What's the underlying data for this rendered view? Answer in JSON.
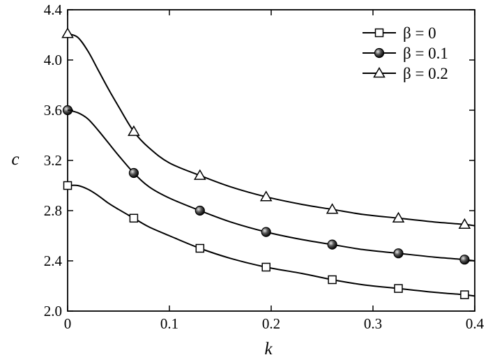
{
  "chart_data": {
    "type": "line",
    "xlabel": "k",
    "ylabel": "c",
    "xlim": [
      0,
      0.4
    ],
    "ylim": [
      2.0,
      4.4
    ],
    "x_ticks": [
      "0",
      "0.1",
      "0.2",
      "0.3",
      "0.4"
    ],
    "y_ticks": [
      "2.0",
      "2.4",
      "2.8",
      "3.2",
      "3.6",
      "4.0",
      "4.4"
    ],
    "x_tick_values": [
      0,
      0.1,
      0.2,
      0.3,
      0.4
    ],
    "y_tick_values": [
      2.0,
      2.4,
      2.8,
      3.2,
      3.6,
      4.0,
      4.4
    ],
    "grid": false,
    "legend_position": "top-right",
    "x": [
      0,
      0.065,
      0.13,
      0.195,
      0.26,
      0.325,
      0.39
    ],
    "series": [
      {
        "name": "β = 0",
        "marker": "square",
        "marker_fill": "white",
        "values": [
          3.0,
          2.74,
          2.5,
          2.35,
          2.25,
          2.18,
          2.13
        ],
        "curve": [
          [
            0,
            3.0
          ],
          [
            0.01,
            3.0
          ],
          [
            0.02,
            2.97
          ],
          [
            0.03,
            2.92
          ],
          [
            0.04,
            2.86
          ],
          [
            0.05,
            2.81
          ],
          [
            0.065,
            2.74
          ],
          [
            0.08,
            2.67
          ],
          [
            0.1,
            2.6
          ],
          [
            0.13,
            2.5
          ],
          [
            0.16,
            2.42
          ],
          [
            0.195,
            2.35
          ],
          [
            0.23,
            2.3
          ],
          [
            0.26,
            2.25
          ],
          [
            0.29,
            2.21
          ],
          [
            0.325,
            2.18
          ],
          [
            0.36,
            2.15
          ],
          [
            0.39,
            2.13
          ],
          [
            0.4,
            2.12
          ]
        ]
      },
      {
        "name": "β = 0.1",
        "marker": "ball",
        "marker_fill": "black",
        "values": [
          3.6,
          3.1,
          2.8,
          2.63,
          2.53,
          2.46,
          2.41
        ],
        "curve": [
          [
            0,
            3.6
          ],
          [
            0.01,
            3.58
          ],
          [
            0.02,
            3.53
          ],
          [
            0.03,
            3.44
          ],
          [
            0.04,
            3.34
          ],
          [
            0.05,
            3.24
          ],
          [
            0.065,
            3.1
          ],
          [
            0.08,
            2.99
          ],
          [
            0.1,
            2.9
          ],
          [
            0.13,
            2.8
          ],
          [
            0.16,
            2.71
          ],
          [
            0.195,
            2.63
          ],
          [
            0.23,
            2.57
          ],
          [
            0.26,
            2.53
          ],
          [
            0.29,
            2.49
          ],
          [
            0.325,
            2.46
          ],
          [
            0.36,
            2.43
          ],
          [
            0.39,
            2.41
          ],
          [
            0.4,
            2.4
          ]
        ]
      },
      {
        "name": "β = 0.2",
        "marker": "triangle",
        "marker_fill": "white",
        "values": [
          4.21,
          3.43,
          3.08,
          2.91,
          2.81,
          2.74,
          2.69
        ],
        "curve": [
          [
            0,
            4.21
          ],
          [
            0.01,
            4.18
          ],
          [
            0.02,
            4.07
          ],
          [
            0.03,
            3.92
          ],
          [
            0.04,
            3.77
          ],
          [
            0.05,
            3.63
          ],
          [
            0.065,
            3.43
          ],
          [
            0.08,
            3.3
          ],
          [
            0.1,
            3.18
          ],
          [
            0.13,
            3.08
          ],
          [
            0.16,
            2.99
          ],
          [
            0.195,
            2.91
          ],
          [
            0.23,
            2.85
          ],
          [
            0.26,
            2.81
          ],
          [
            0.29,
            2.77
          ],
          [
            0.325,
            2.74
          ],
          [
            0.36,
            2.71
          ],
          [
            0.39,
            2.69
          ],
          [
            0.4,
            2.68
          ]
        ]
      }
    ]
  }
}
